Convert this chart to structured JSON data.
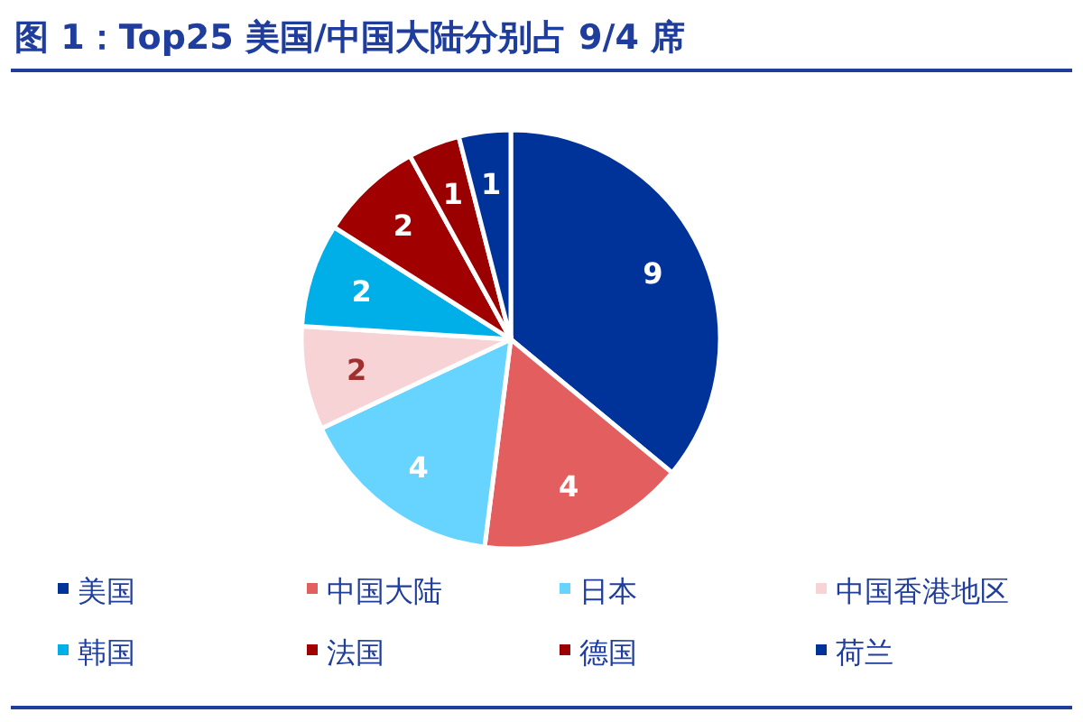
{
  "chart_data": {
    "type": "pie",
    "title": "图 1：Top25 美国/中国大陆分别占 9/4 席",
    "categories": [
      "美国",
      "中国大陆",
      "日本",
      "中国香港地区",
      "韩国",
      "法国",
      "德国",
      "荷兰"
    ],
    "values": [
      9,
      4,
      4,
      2,
      2,
      2,
      1,
      1
    ],
    "colors": [
      "#003399",
      "#e35f5f",
      "#66d4ff",
      "#f8d3d5",
      "#00aee8",
      "#a00000",
      "#9a0000",
      "#003399"
    ],
    "data_labels": true,
    "legend": "bottom"
  }
}
